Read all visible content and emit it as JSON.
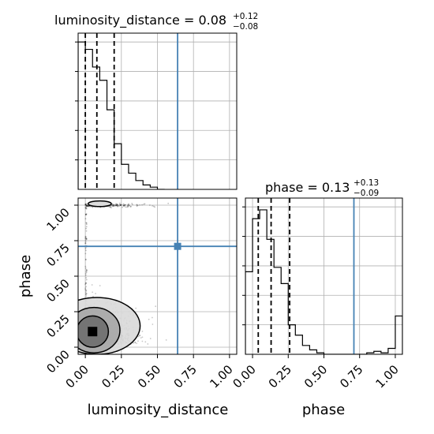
{
  "chart_data": {
    "type": "corner",
    "parameters": [
      "luminosity_distance",
      "phase"
    ],
    "xlabel_luminosity_distance": "luminosity_distance",
    "xlabel_phase": "phase",
    "ylabel_phase": "phase",
    "titles": {
      "luminosity_distance": {
        "prefix": "luminosity_distance = ",
        "median": "0.08",
        "plus": "+0.12",
        "minus": "−0.08"
      },
      "phase": {
        "prefix": "phase = ",
        "median": "0.13",
        "plus": "+0.13",
        "minus": "−0.09"
      }
    },
    "xlim": [
      -0.05,
      1.05
    ],
    "ylim": [
      -0.05,
      1.05
    ],
    "ticks": [
      0.0,
      0.25,
      0.5,
      0.75,
      1.0
    ],
    "tick_labels": [
      "0.00",
      "0.25",
      "0.50",
      "0.75",
      "1.00"
    ],
    "grid": true,
    "truths": {
      "luminosity_distance": 0.64,
      "phase": 0.71
    },
    "truth_color": "#4682b4",
    "luminosity_distance_hist": {
      "edges": [
        -0.05,
        -0.0,
        0.05,
        0.1,
        0.15,
        0.2,
        0.25,
        0.3,
        0.35,
        0.4,
        0.45,
        0.5,
        0.55
      ],
      "counts": [
        1.0,
        0.95,
        0.83,
        0.74,
        0.54,
        0.31,
        0.17,
        0.11,
        0.06,
        0.03,
        0.015,
        0.0
      ]
    },
    "luminosity_distance_quantiles": [
      0.0,
      0.08,
      0.2
    ],
    "phase_hist": {
      "edges": [
        -0.05,
        0.0,
        0.05,
        0.1,
        0.15,
        0.2,
        0.25,
        0.3,
        0.35,
        0.4,
        0.45,
        0.5,
        0.55,
        0.6,
        0.65,
        0.7,
        0.75,
        0.8,
        0.85,
        0.9,
        0.95,
        1.0,
        1.05
      ],
      "counts": [
        0.56,
        0.92,
        0.98,
        0.78,
        0.59,
        0.48,
        0.2,
        0.13,
        0.06,
        0.03,
        0.01,
        0.0,
        0.0,
        0.0,
        0.0,
        0.0,
        0.0,
        0.01,
        0.02,
        0.01,
        0.04,
        0.26
      ]
    },
    "phase_quantiles": [
      0.04,
      0.13,
      0.26
    ],
    "histogram_y_ticks": [
      0.2,
      0.4,
      0.6,
      0.8,
      1.0
    ],
    "contour_levels_2d": [
      {
        "cx": 0.05,
        "cy": 0.11,
        "rx": 0.11,
        "ry": 0.11
      },
      {
        "cx": 0.06,
        "cy": 0.12,
        "rx": 0.18,
        "ry": 0.16
      },
      {
        "cx": 0.08,
        "cy": 0.15,
        "rx": 0.3,
        "ry": 0.2
      }
    ],
    "contour_high_phase": {
      "cx": 0.1,
      "cy": 1.01,
      "rx": 0.08,
      "ry": 0.02
    }
  }
}
